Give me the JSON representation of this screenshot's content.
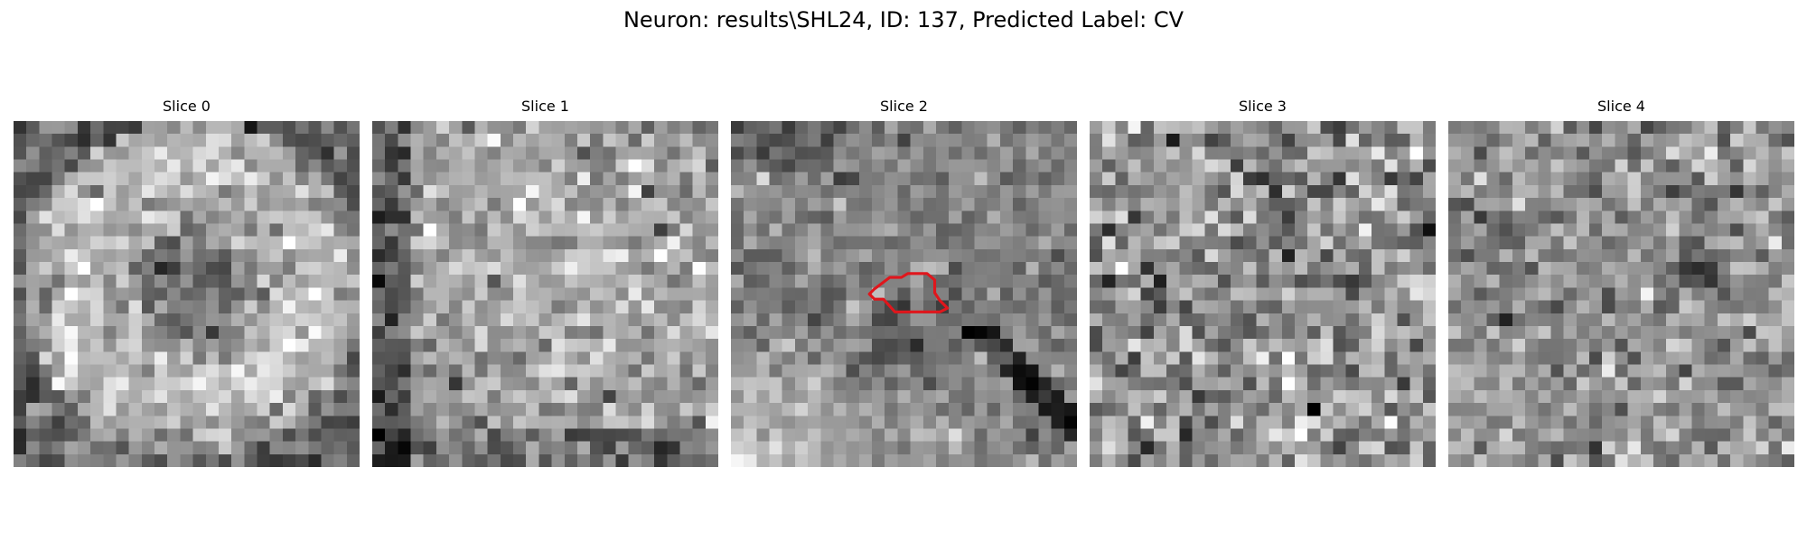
{
  "title": "Neuron: results\\SHL24, ID: 137, Predicted Label: CV",
  "panels": [
    {
      "label": "Slice 0",
      "has_contour": false
    },
    {
      "label": "Slice 1",
      "has_contour": false
    },
    {
      "label": "Slice 2",
      "has_contour": true
    },
    {
      "label": "Slice 3",
      "has_contour": false
    },
    {
      "label": "Slice 4",
      "has_contour": false
    }
  ],
  "colors": {
    "background": "#ffffff",
    "contour": "#e0161c"
  },
  "image_colormap": "gray",
  "image_grid": [
    27,
    27
  ]
}
